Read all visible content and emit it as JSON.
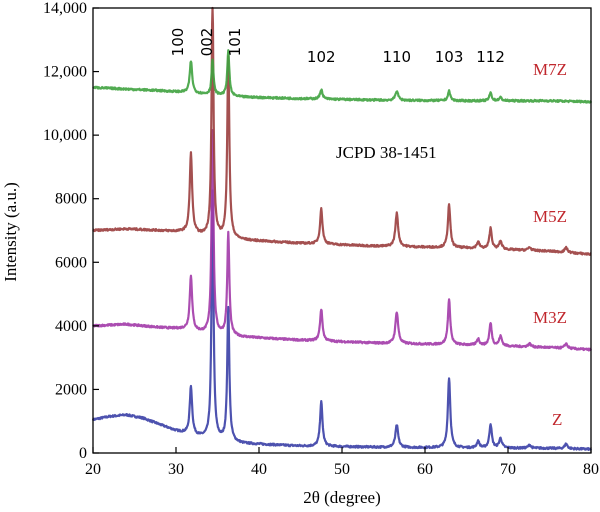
{
  "chart_data": {
    "type": "line",
    "xlabel": "2θ (degree)",
    "ylabel": "Intensity (a.u.)",
    "xlim": [
      20,
      80
    ],
    "ylim": [
      0,
      14000
    ],
    "xticks": [
      "20",
      "30",
      "40",
      "50",
      "60",
      "70",
      "80"
    ],
    "yticks": [
      "0",
      "2000",
      "4000",
      "6000",
      "8000",
      "10,000",
      "12,000",
      "14,000"
    ],
    "annotation": "JCPD 38-1451",
    "peak_labels": [
      {
        "text": "100",
        "x": 31.8
      },
      {
        "text": "002",
        "x": 34.4
      },
      {
        "text": "101",
        "x": 36.3
      },
      {
        "text": "102",
        "x": 47.5
      },
      {
        "text": "110",
        "x": 56.6
      },
      {
        "text": "103",
        "x": 62.9
      },
      {
        "text": "112",
        "x": 67.9
      }
    ],
    "series": [
      {
        "name": "Z",
        "color": "#3a3fa6",
        "baseline": [
          [
            20,
            1050
          ],
          [
            22,
            1150
          ],
          [
            24,
            1200
          ],
          [
            26,
            1100
          ],
          [
            28,
            900
          ],
          [
            30,
            700
          ],
          [
            33,
            500
          ],
          [
            38,
            300
          ],
          [
            45,
            220
          ],
          [
            55,
            180
          ],
          [
            65,
            160
          ],
          [
            75,
            150
          ],
          [
            80,
            120
          ]
        ],
        "peaks": [
          [
            31.8,
            1500,
            0.35
          ],
          [
            34.4,
            7800,
            0.28
          ],
          [
            36.3,
            4200,
            0.3
          ],
          [
            47.5,
            1400,
            0.35
          ],
          [
            56.6,
            700,
            0.4
          ],
          [
            62.9,
            2200,
            0.35
          ],
          [
            66.4,
            200,
            0.4
          ],
          [
            67.9,
            750,
            0.35
          ],
          [
            69.1,
            300,
            0.4
          ],
          [
            72.6,
            100,
            0.4
          ],
          [
            77.0,
            150,
            0.4
          ]
        ]
      },
      {
        "name": "M3Z",
        "color": "#a23aa8",
        "baseline": [
          [
            20,
            4000
          ],
          [
            24,
            4050
          ],
          [
            28,
            3950
          ],
          [
            31,
            3900
          ],
          [
            33,
            3800
          ],
          [
            38,
            3650
          ],
          [
            45,
            3550
          ],
          [
            55,
            3450
          ],
          [
            65,
            3400
          ],
          [
            75,
            3320
          ],
          [
            80,
            3250
          ]
        ],
        "peaks": [
          [
            31.8,
            1700,
            0.35
          ],
          [
            34.4,
            6400,
            0.28
          ],
          [
            36.3,
            3200,
            0.3
          ],
          [
            47.5,
            1000,
            0.35
          ],
          [
            56.6,
            1000,
            0.4
          ],
          [
            62.9,
            1400,
            0.35
          ],
          [
            66.4,
            200,
            0.4
          ],
          [
            67.9,
            700,
            0.35
          ],
          [
            69.1,
            300,
            0.4
          ],
          [
            72.6,
            100,
            0.4
          ],
          [
            77.0,
            150,
            0.4
          ]
        ]
      },
      {
        "name": "M5Z",
        "color": "#9a3d3d",
        "baseline": [
          [
            20,
            7000
          ],
          [
            24,
            7050
          ],
          [
            28,
            7000
          ],
          [
            31,
            6950
          ],
          [
            33,
            6850
          ],
          [
            38,
            6700
          ],
          [
            45,
            6600
          ],
          [
            55,
            6500
          ],
          [
            65,
            6450
          ],
          [
            75,
            6350
          ],
          [
            80,
            6250
          ]
        ],
        "peaks": [
          [
            31.8,
            2500,
            0.35
          ],
          [
            34.4,
            7500,
            0.28
          ],
          [
            36.3,
            5700,
            0.3
          ],
          [
            47.5,
            1100,
            0.35
          ],
          [
            56.6,
            1050,
            0.4
          ],
          [
            62.9,
            1350,
            0.35
          ],
          [
            66.4,
            200,
            0.4
          ],
          [
            67.9,
            650,
            0.35
          ],
          [
            69.1,
            250,
            0.4
          ],
          [
            72.6,
            100,
            0.4
          ],
          [
            77.0,
            150,
            0.4
          ]
        ]
      },
      {
        "name": "M7Z",
        "color": "#3fa23f",
        "baseline": [
          [
            20,
            11500
          ],
          [
            24,
            11450
          ],
          [
            28,
            11400
          ],
          [
            31,
            11350
          ],
          [
            33,
            11300
          ],
          [
            38,
            11200
          ],
          [
            45,
            11150
          ],
          [
            55,
            11100
          ],
          [
            65,
            11080
          ],
          [
            75,
            11080
          ],
          [
            80,
            11050
          ]
        ],
        "peaks": [
          [
            31.8,
            1000,
            0.35
          ],
          [
            34.4,
            1100,
            0.28
          ],
          [
            36.3,
            1400,
            0.3
          ],
          [
            47.5,
            300,
            0.35
          ],
          [
            56.6,
            300,
            0.4
          ],
          [
            62.9,
            300,
            0.35
          ],
          [
            67.9,
            250,
            0.35
          ],
          [
            69.1,
            100,
            0.4
          ]
        ]
      }
    ]
  }
}
